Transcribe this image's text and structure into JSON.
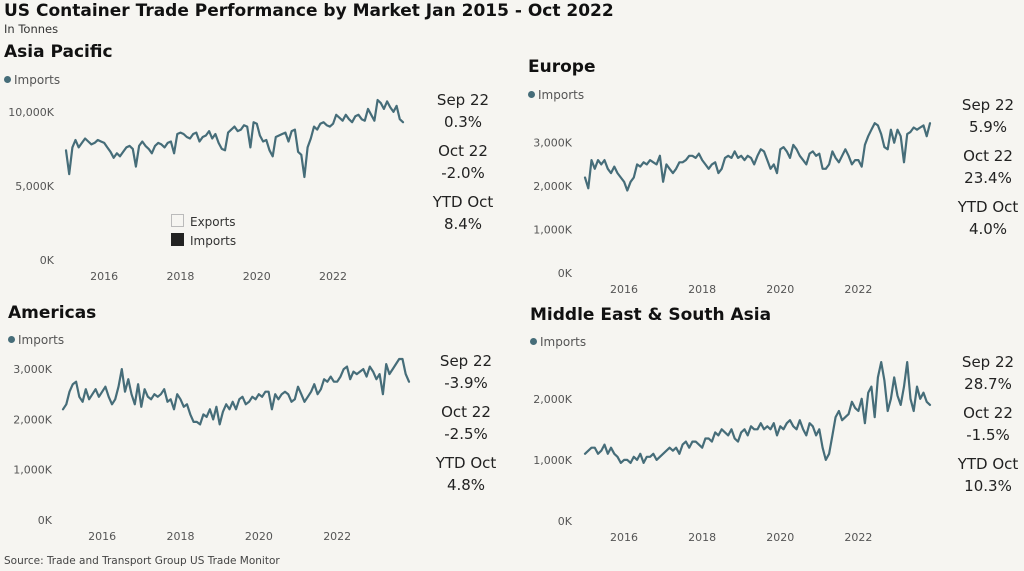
{
  "title": "US Container Trade Performance by Market Jan 2015 - Oct 2022",
  "subtitle": "In Tonnes",
  "source": "Source: Trade and Transport Group US Trade Monitor",
  "line_color": "#466d79",
  "extra_legend": {
    "exports": "Exports",
    "imports": "Imports"
  },
  "panels": [
    {
      "title": "Asia Pacific",
      "legend": "Imports",
      "stats": [
        {
          "label": "Sep 22",
          "value": "0.3%"
        },
        {
          "label": "Oct 22",
          "value": "-2.0%"
        },
        {
          "label": "YTD Oct",
          "value": "8.4%"
        }
      ],
      "xticks": [
        "2016",
        "2018",
        "2020",
        "2022"
      ],
      "yticks": [
        "0K",
        "5,000K",
        "10,000K"
      ]
    },
    {
      "title": "Europe",
      "legend": "Imports",
      "stats": [
        {
          "label": "Sep 22",
          "value": "5.9%"
        },
        {
          "label": "Oct 22",
          "value": "23.4%"
        },
        {
          "label": "YTD Oct",
          "value": "4.0%"
        }
      ],
      "xticks": [
        "2016",
        "2018",
        "2020",
        "2022"
      ],
      "yticks": [
        "0K",
        "1,000K",
        "2,000K",
        "3,000K"
      ]
    },
    {
      "title": "Americas",
      "legend": "Imports",
      "stats": [
        {
          "label": "Sep 22",
          "value": "-3.9%"
        },
        {
          "label": "Oct 22",
          "value": "-2.5%"
        },
        {
          "label": "YTD Oct",
          "value": "4.8%"
        }
      ],
      "xticks": [
        "2016",
        "2018",
        "2020",
        "2022"
      ],
      "yticks": [
        "0K",
        "1,000K",
        "2,000K",
        "3,000K"
      ]
    },
    {
      "title": "Middle East & South Asia",
      "legend": "Imports",
      "stats": [
        {
          "label": "Sep 22",
          "value": "28.7%"
        },
        {
          "label": "Oct 22",
          "value": "-1.5%"
        },
        {
          "label": "YTD Oct",
          "value": "10.3%"
        }
      ],
      "xticks": [
        "2016",
        "2018",
        "2020",
        "2022"
      ],
      "yticks": [
        "0K",
        "1,000K",
        "2,000K"
      ]
    }
  ],
  "chart_data": [
    {
      "type": "line",
      "title": "Asia Pacific",
      "start": "2015-01",
      "x_unit": "month",
      "ylim": [
        0,
        11000
      ],
      "ytick_values": [
        0,
        5000,
        10000
      ],
      "xtick_years": [
        2016,
        2018,
        2020,
        2022
      ],
      "series": [
        {
          "name": "Imports",
          "values": [
            7400,
            5800,
            7600,
            8100,
            7600,
            7900,
            8200,
            8000,
            7800,
            7900,
            8100,
            8000,
            7900,
            7600,
            7300,
            6900,
            7200,
            7000,
            7300,
            7600,
            7700,
            7500,
            6300,
            7700,
            8000,
            7700,
            7500,
            7200,
            7700,
            7900,
            7800,
            7600,
            7900,
            8000,
            7200,
            8500,
            8600,
            8500,
            8300,
            8200,
            8500,
            8600,
            8000,
            8300,
            8400,
            8700,
            8200,
            8500,
            7900,
            7500,
            7400,
            8600,
            8800,
            9000,
            8700,
            8800,
            9100,
            9000,
            7600,
            9300,
            9200,
            8400,
            8000,
            8100,
            7400,
            7000,
            8300,
            8400,
            8500,
            8600,
            8000,
            8700,
            8800,
            7300,
            7100,
            5600,
            7600,
            8200,
            9000,
            8800,
            9200,
            9300,
            9100,
            9000,
            9200,
            9800,
            9600,
            9400,
            9800,
            9500,
            9300,
            9700,
            9800,
            9500,
            9400,
            10200,
            9800,
            9400,
            10800,
            10600,
            10200,
            10700,
            10300,
            10000,
            10400,
            9500,
            9300
          ]
        }
      ]
    },
    {
      "type": "line",
      "title": "Europe",
      "start": "2015-01",
      "x_unit": "month",
      "ylim": [
        0,
        3800
      ],
      "ytick_values": [
        0,
        1000,
        2000,
        3000
      ],
      "xtick_years": [
        2016,
        2018,
        2020,
        2022
      ],
      "series": [
        {
          "name": "Imports",
          "values": [
            2200,
            1950,
            2600,
            2400,
            2600,
            2500,
            2600,
            2400,
            2300,
            2450,
            2300,
            2200,
            2100,
            1900,
            2100,
            2200,
            2500,
            2450,
            2550,
            2500,
            2600,
            2550,
            2500,
            2700,
            2100,
            2500,
            2400,
            2300,
            2400,
            2550,
            2550,
            2600,
            2700,
            2700,
            2650,
            2750,
            2600,
            2500,
            2400,
            2500,
            2550,
            2300,
            2400,
            2650,
            2700,
            2650,
            2800,
            2650,
            2700,
            2600,
            2700,
            2650,
            2500,
            2700,
            2850,
            2800,
            2600,
            2400,
            2500,
            2300,
            2850,
            2900,
            2800,
            2650,
            2950,
            2850,
            2700,
            2600,
            2500,
            2750,
            2800,
            2700,
            2750,
            2400,
            2400,
            2500,
            2800,
            2650,
            2550,
            2700,
            2850,
            2700,
            2500,
            2600,
            2600,
            2450,
            2950,
            3150,
            3300,
            3450,
            3400,
            3200,
            2900,
            2850,
            3300,
            3000,
            3300,
            3150,
            2550,
            3200,
            3250,
            3350,
            3300,
            3350,
            3400,
            3150,
            3450
          ]
        }
      ]
    },
    {
      "type": "line",
      "title": "Americas",
      "start": "2015-01",
      "x_unit": "month",
      "ylim": [
        0,
        3300
      ],
      "ytick_values": [
        0,
        1000,
        2000,
        3000
      ],
      "xtick_years": [
        2016,
        2018,
        2020,
        2022
      ],
      "series": [
        {
          "name": "Imports",
          "values": [
            2200,
            2300,
            2550,
            2700,
            2750,
            2450,
            2350,
            2600,
            2400,
            2500,
            2600,
            2450,
            2550,
            2650,
            2450,
            2300,
            2400,
            2650,
            3000,
            2550,
            2800,
            2500,
            2300,
            2700,
            2250,
            2600,
            2450,
            2400,
            2500,
            2450,
            2500,
            2600,
            2350,
            2400,
            2200,
            2500,
            2400,
            2250,
            2300,
            2100,
            1950,
            1950,
            1900,
            2100,
            2050,
            2200,
            2000,
            2250,
            1900,
            2150,
            2300,
            2200,
            2350,
            2200,
            2400,
            2450,
            2300,
            2350,
            2450,
            2400,
            2500,
            2450,
            2550,
            2550,
            2200,
            2500,
            2400,
            2500,
            2550,
            2500,
            2350,
            2400,
            2650,
            2500,
            2350,
            2450,
            2550,
            2700,
            2500,
            2600,
            2800,
            2750,
            2850,
            2750,
            2750,
            2850,
            3000,
            3050,
            2800,
            2950,
            2900,
            2950,
            3000,
            2850,
            3050,
            2950,
            2800,
            2900,
            2500,
            3100,
            2900,
            3000,
            3100,
            3200,
            3200,
            2900,
            2750
          ]
        }
      ]
    },
    {
      "type": "line",
      "title": "Middle East & South Asia",
      "start": "2015-01",
      "x_unit": "month",
      "ylim": [
        0,
        2700
      ],
      "ytick_values": [
        0,
        1000,
        2000
      ],
      "xtick_years": [
        2016,
        2018,
        2020,
        2022
      ],
      "series": [
        {
          "name": "Imports",
          "values": [
            1100,
            1150,
            1200,
            1200,
            1100,
            1150,
            1250,
            1100,
            1200,
            1100,
            1050,
            950,
            1000,
            1000,
            950,
            1050,
            1000,
            1100,
            950,
            1050,
            1050,
            1100,
            1000,
            1050,
            1100,
            1150,
            1200,
            1150,
            1200,
            1100,
            1250,
            1300,
            1200,
            1300,
            1300,
            1250,
            1200,
            1350,
            1350,
            1300,
            1450,
            1400,
            1500,
            1450,
            1400,
            1500,
            1350,
            1300,
            1450,
            1500,
            1400,
            1550,
            1500,
            1500,
            1600,
            1500,
            1550,
            1500,
            1600,
            1400,
            1550,
            1500,
            1600,
            1650,
            1550,
            1500,
            1650,
            1500,
            1400,
            1600,
            1550,
            1400,
            1500,
            1200,
            1000,
            1100,
            1400,
            1700,
            1800,
            1650,
            1700,
            1750,
            1950,
            1850,
            1800,
            2000,
            1600,
            2100,
            2200,
            1700,
            2350,
            2600,
            2300,
            1800,
            2000,
            2350,
            2050,
            1900,
            2200,
            2600,
            2000,
            1800,
            2200,
            2000,
            2100,
            1950,
            1900
          ]
        }
      ]
    }
  ]
}
